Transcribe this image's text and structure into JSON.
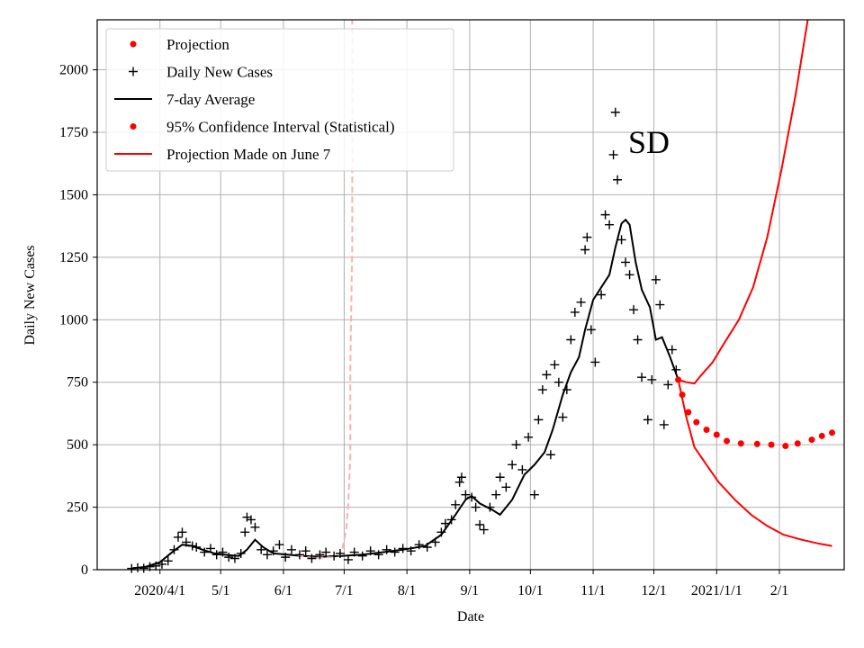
{
  "chart_data": {
    "type": "line",
    "ylabel": "Daily New Cases",
    "xlabel": "Date",
    "annotation": "SD",
    "grid": true,
    "ylim": [
      0,
      2200
    ],
    "xlim": [
      "2020-03-01",
      "2021-03-05"
    ],
    "yticks": [
      0,
      250,
      500,
      750,
      1000,
      1250,
      1500,
      1750,
      2000
    ],
    "xticks": [
      {
        "date": "2020-04-01",
        "label": "2020/4/1"
      },
      {
        "date": "2020-05-01",
        "label": "5/1"
      },
      {
        "date": "2020-06-01",
        "label": "6/1"
      },
      {
        "date": "2020-07-01",
        "label": "7/1"
      },
      {
        "date": "2020-08-01",
        "label": "8/1"
      },
      {
        "date": "2020-09-01",
        "label": "9/1"
      },
      {
        "date": "2020-10-01",
        "label": "10/1"
      },
      {
        "date": "2020-11-01",
        "label": "11/1"
      },
      {
        "date": "2020-12-01",
        "label": "12/1"
      },
      {
        "date": "2021-01-01",
        "label": "2021/1/1"
      },
      {
        "date": "2021-02-01",
        "label": "2/1"
      }
    ],
    "legend": {
      "position": "upper-left",
      "entries": [
        {
          "label": "Projection",
          "marker": "dot",
          "color": "#ff0000"
        },
        {
          "label": "Daily New Cases",
          "marker": "plus",
          "color": "#000000"
        },
        {
          "label": "7-day Average",
          "marker": "line",
          "color": "#000000"
        },
        {
          "label": "95% Confidence Interval (Statistical)",
          "marker": "dot",
          "color": "#ff0000"
        },
        {
          "label": "Projection Made on June 7",
          "marker": "line",
          "color": "#ff0000"
        }
      ]
    },
    "series": [
      {
        "name": "7-day Average",
        "style": "line",
        "color": "#000000",
        "points": [
          [
            "2020-03-18",
            5
          ],
          [
            "2020-03-25",
            12
          ],
          [
            "2020-04-01",
            30
          ],
          [
            "2020-04-07",
            70
          ],
          [
            "2020-04-12",
            100
          ],
          [
            "2020-04-17",
            95
          ],
          [
            "2020-04-22",
            80
          ],
          [
            "2020-04-28",
            65
          ],
          [
            "2020-05-05",
            58
          ],
          [
            "2020-05-10",
            55
          ],
          [
            "2020-05-14",
            80
          ],
          [
            "2020-05-18",
            120
          ],
          [
            "2020-05-22",
            90
          ],
          [
            "2020-05-27",
            65
          ],
          [
            "2020-06-03",
            60
          ],
          [
            "2020-06-10",
            55
          ],
          [
            "2020-06-20",
            52
          ],
          [
            "2020-06-30",
            55
          ],
          [
            "2020-07-10",
            60
          ],
          [
            "2020-07-20",
            70
          ],
          [
            "2020-07-30",
            80
          ],
          [
            "2020-08-10",
            95
          ],
          [
            "2020-08-18",
            140
          ],
          [
            "2020-08-25",
            220
          ],
          [
            "2020-08-30",
            280
          ],
          [
            "2020-09-02",
            295
          ],
          [
            "2020-09-06",
            265
          ],
          [
            "2020-09-12",
            240
          ],
          [
            "2020-09-16",
            220
          ],
          [
            "2020-09-22",
            280
          ],
          [
            "2020-09-28",
            380
          ],
          [
            "2020-10-03",
            420
          ],
          [
            "2020-10-08",
            470
          ],
          [
            "2020-10-12",
            560
          ],
          [
            "2020-10-17",
            700
          ],
          [
            "2020-10-21",
            790
          ],
          [
            "2020-10-25",
            850
          ],
          [
            "2020-10-28",
            960
          ],
          [
            "2020-11-01",
            1080
          ],
          [
            "2020-11-05",
            1130
          ],
          [
            "2020-11-09",
            1180
          ],
          [
            "2020-11-12",
            1290
          ],
          [
            "2020-11-15",
            1385
          ],
          [
            "2020-11-17",
            1400
          ],
          [
            "2020-11-19",
            1380
          ],
          [
            "2020-11-22",
            1230
          ],
          [
            "2020-11-25",
            1120
          ],
          [
            "2020-11-29",
            1050
          ],
          [
            "2020-12-02",
            920
          ],
          [
            "2020-12-05",
            930
          ],
          [
            "2020-12-09",
            850
          ],
          [
            "2020-12-13",
            760
          ]
        ]
      },
      {
        "name": "Projection",
        "style": "dots",
        "color": "#ff0000",
        "points": [
          [
            "2020-12-13",
            760
          ],
          [
            "2020-12-15",
            700
          ],
          [
            "2020-12-18",
            630
          ],
          [
            "2020-12-22",
            590
          ],
          [
            "2020-12-27",
            560
          ],
          [
            "2021-01-01",
            540
          ],
          [
            "2021-01-06",
            515
          ],
          [
            "2021-01-13",
            505
          ],
          [
            "2021-01-21",
            503
          ],
          [
            "2021-01-28",
            500
          ],
          [
            "2021-02-04",
            495
          ],
          [
            "2021-02-10",
            505
          ],
          [
            "2021-02-17",
            520
          ],
          [
            "2021-02-22",
            535
          ],
          [
            "2021-02-27",
            548
          ]
        ]
      },
      {
        "name": "95% Confidence Interval (Statistical) upper",
        "style": "line",
        "color": "#ff0000",
        "points": [
          [
            "2020-12-13",
            760
          ],
          [
            "2020-12-17",
            750
          ],
          [
            "2020-12-21",
            745
          ],
          [
            "2020-12-24",
            775
          ],
          [
            "2020-12-30",
            830
          ],
          [
            "2021-01-05",
            910
          ],
          [
            "2021-01-12",
            1000
          ],
          [
            "2021-01-19",
            1130
          ],
          [
            "2021-01-26",
            1330
          ],
          [
            "2021-02-02",
            1600
          ],
          [
            "2021-02-09",
            1900
          ],
          [
            "2021-02-15",
            2200
          ]
        ]
      },
      {
        "name": "95% Confidence Interval (Statistical) lower",
        "style": "line",
        "color": "#ff0000",
        "points": [
          [
            "2020-12-13",
            760
          ],
          [
            "2020-12-17",
            610
          ],
          [
            "2020-12-21",
            490
          ],
          [
            "2020-12-27",
            420
          ],
          [
            "2021-01-02",
            350
          ],
          [
            "2021-01-10",
            280
          ],
          [
            "2021-01-18",
            220
          ],
          [
            "2021-01-26",
            175
          ],
          [
            "2021-02-03",
            140
          ],
          [
            "2021-02-12",
            120
          ],
          [
            "2021-02-20",
            105
          ],
          [
            "2021-02-27",
            95
          ]
        ]
      },
      {
        "name": "Projection Made on June 7",
        "style": "dashed",
        "color": "#ffb0b0",
        "points": [
          [
            "2020-06-08",
            60
          ],
          [
            "2020-06-12",
            50
          ],
          [
            "2020-06-16",
            48
          ],
          [
            "2020-06-20",
            48
          ],
          [
            "2020-06-24",
            50
          ],
          [
            "2020-06-28",
            55
          ],
          [
            "2020-06-30",
            80
          ],
          [
            "2020-07-02",
            160
          ],
          [
            "2020-07-03",
            260
          ],
          [
            "2020-07-04",
            450
          ],
          [
            "2020-07-04",
            800
          ],
          [
            "2020-07-05",
            1300
          ],
          [
            "2020-07-05",
            1800
          ],
          [
            "2020-07-05",
            2200
          ]
        ]
      },
      {
        "name": "Daily New Cases",
        "style": "plus",
        "color": "#000000",
        "points": [
          [
            "2020-03-18",
            5
          ],
          [
            "2020-03-21",
            8
          ],
          [
            "2020-03-24",
            6
          ],
          [
            "2020-03-27",
            12
          ],
          [
            "2020-03-30",
            15
          ],
          [
            "2020-04-02",
            22
          ],
          [
            "2020-04-05",
            35
          ],
          [
            "2020-04-08",
            80
          ],
          [
            "2020-04-10",
            130
          ],
          [
            "2020-04-12",
            150
          ],
          [
            "2020-04-14",
            110
          ],
          [
            "2020-04-17",
            95
          ],
          [
            "2020-04-19",
            90
          ],
          [
            "2020-04-23",
            70
          ],
          [
            "2020-04-26",
            85
          ],
          [
            "2020-04-29",
            60
          ],
          [
            "2020-05-02",
            70
          ],
          [
            "2020-05-05",
            50
          ],
          [
            "2020-05-08",
            45
          ],
          [
            "2020-05-11",
            65
          ],
          [
            "2020-05-13",
            150
          ],
          [
            "2020-05-14",
            210
          ],
          [
            "2020-05-16",
            200
          ],
          [
            "2020-05-18",
            170
          ],
          [
            "2020-05-21",
            80
          ],
          [
            "2020-05-24",
            60
          ],
          [
            "2020-05-27",
            75
          ],
          [
            "2020-05-30",
            100
          ],
          [
            "2020-06-02",
            50
          ],
          [
            "2020-06-05",
            80
          ],
          [
            "2020-06-09",
            60
          ],
          [
            "2020-06-12",
            75
          ],
          [
            "2020-06-15",
            45
          ],
          [
            "2020-06-19",
            60
          ],
          [
            "2020-06-22",
            70
          ],
          [
            "2020-06-26",
            55
          ],
          [
            "2020-06-29",
            65
          ],
          [
            "2020-07-03",
            40
          ],
          [
            "2020-07-06",
            70
          ],
          [
            "2020-07-10",
            55
          ],
          [
            "2020-07-14",
            75
          ],
          [
            "2020-07-18",
            60
          ],
          [
            "2020-07-22",
            80
          ],
          [
            "2020-07-26",
            70
          ],
          [
            "2020-07-30",
            85
          ],
          [
            "2020-08-03",
            75
          ],
          [
            "2020-08-07",
            100
          ],
          [
            "2020-08-11",
            90
          ],
          [
            "2020-08-15",
            110
          ],
          [
            "2020-08-18",
            150
          ],
          [
            "2020-08-20",
            185
          ],
          [
            "2020-08-23",
            200
          ],
          [
            "2020-08-25",
            260
          ],
          [
            "2020-08-27",
            350
          ],
          [
            "2020-08-28",
            370
          ],
          [
            "2020-08-30",
            300
          ],
          [
            "2020-09-02",
            290
          ],
          [
            "2020-09-04",
            250
          ],
          [
            "2020-09-06",
            180
          ],
          [
            "2020-09-08",
            160
          ],
          [
            "2020-09-11",
            250
          ],
          [
            "2020-09-14",
            300
          ],
          [
            "2020-09-16",
            370
          ],
          [
            "2020-09-19",
            330
          ],
          [
            "2020-09-22",
            420
          ],
          [
            "2020-09-24",
            500
          ],
          [
            "2020-09-27",
            400
          ],
          [
            "2020-09-30",
            530
          ],
          [
            "2020-10-03",
            300
          ],
          [
            "2020-10-05",
            600
          ],
          [
            "2020-10-07",
            720
          ],
          [
            "2020-10-09",
            780
          ],
          [
            "2020-10-11",
            460
          ],
          [
            "2020-10-13",
            820
          ],
          [
            "2020-10-15",
            750
          ],
          [
            "2020-10-17",
            610
          ],
          [
            "2020-10-19",
            720
          ],
          [
            "2020-10-21",
            920
          ],
          [
            "2020-10-23",
            1030
          ],
          [
            "2020-10-26",
            1070
          ],
          [
            "2020-10-28",
            1280
          ],
          [
            "2020-10-29",
            1330
          ],
          [
            "2020-10-31",
            960
          ],
          [
            "2020-11-02",
            830
          ],
          [
            "2020-11-05",
            1100
          ],
          [
            "2020-11-07",
            1420
          ],
          [
            "2020-11-09",
            1380
          ],
          [
            "2020-11-11",
            1660
          ],
          [
            "2020-11-12",
            1830
          ],
          [
            "2020-11-13",
            1560
          ],
          [
            "2020-11-15",
            1320
          ],
          [
            "2020-11-17",
            1230
          ],
          [
            "2020-11-19",
            1180
          ],
          [
            "2020-11-21",
            1040
          ],
          [
            "2020-11-23",
            920
          ],
          [
            "2020-11-25",
            770
          ],
          [
            "2020-11-28",
            600
          ],
          [
            "2020-11-30",
            760
          ],
          [
            "2020-12-02",
            1160
          ],
          [
            "2020-12-04",
            1060
          ],
          [
            "2020-12-06",
            580
          ],
          [
            "2020-12-08",
            740
          ],
          [
            "2020-12-10",
            880
          ],
          [
            "2020-12-12",
            800
          ]
        ]
      }
    ]
  }
}
